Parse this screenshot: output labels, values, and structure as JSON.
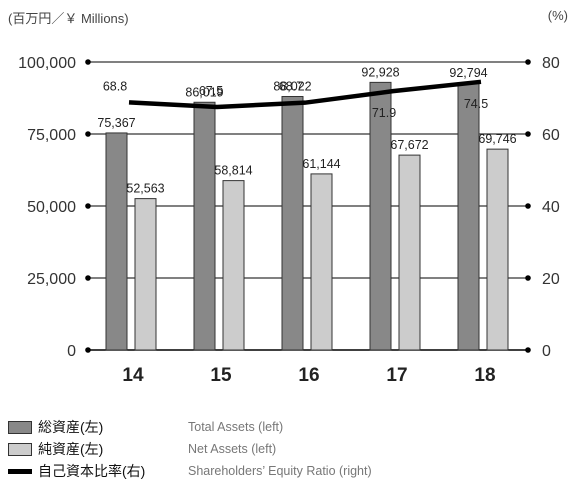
{
  "chart_data": {
    "type": "bar",
    "categories": [
      "14",
      "15",
      "16",
      "17",
      "18"
    ],
    "series": [
      {
        "name": "総資産(左)",
        "values": [
          75367,
          86019,
          88022,
          92928,
          92794
        ],
        "labels": [
          "75,367",
          "86,019",
          "88,022",
          "92,928",
          "92,794"
        ],
        "color": "#888888",
        "axis": "left"
      },
      {
        "name": "純資産(左)",
        "values": [
          52563,
          58814,
          61144,
          67672,
          69746
        ],
        "labels": [
          "52,563",
          "58,814",
          "61,144",
          "67,672",
          "69,746"
        ],
        "color": "#cccccc",
        "axis": "left"
      },
      {
        "name": "自己資本比率(右)",
        "type": "line",
        "values": [
          68.8,
          67.5,
          68.7,
          71.9,
          74.5
        ],
        "labels": [
          "68.8",
          "67.5",
          "68.7",
          "71.9",
          "74.5"
        ],
        "color": "#000000",
        "axis": "right"
      }
    ],
    "y_left": {
      "min": 0,
      "max": 100000,
      "ticks": [
        0,
        25000,
        50000,
        75000,
        100000
      ],
      "tick_labels": [
        "0",
        "25,000",
        "50,000",
        "75,000",
        "100,000"
      ]
    },
    "y_right": {
      "min": 0,
      "max": 80,
      "ticks": [
        0,
        20,
        40,
        60,
        80
      ],
      "tick_labels": [
        "0",
        "20",
        "40",
        "60",
        "80"
      ]
    },
    "grid": true
  },
  "units": {
    "left": "(百万円／￥ Millions)",
    "right": "(%)"
  },
  "legend": [
    {
      "jp": "総資産(左)",
      "en": "Total Assets (left)"
    },
    {
      "jp": "純資産(左)",
      "en": "Net Assets (left)"
    },
    {
      "jp": "自己資本比率(右)",
      "en": "Shareholders’ Equity Ratio (right)"
    }
  ]
}
